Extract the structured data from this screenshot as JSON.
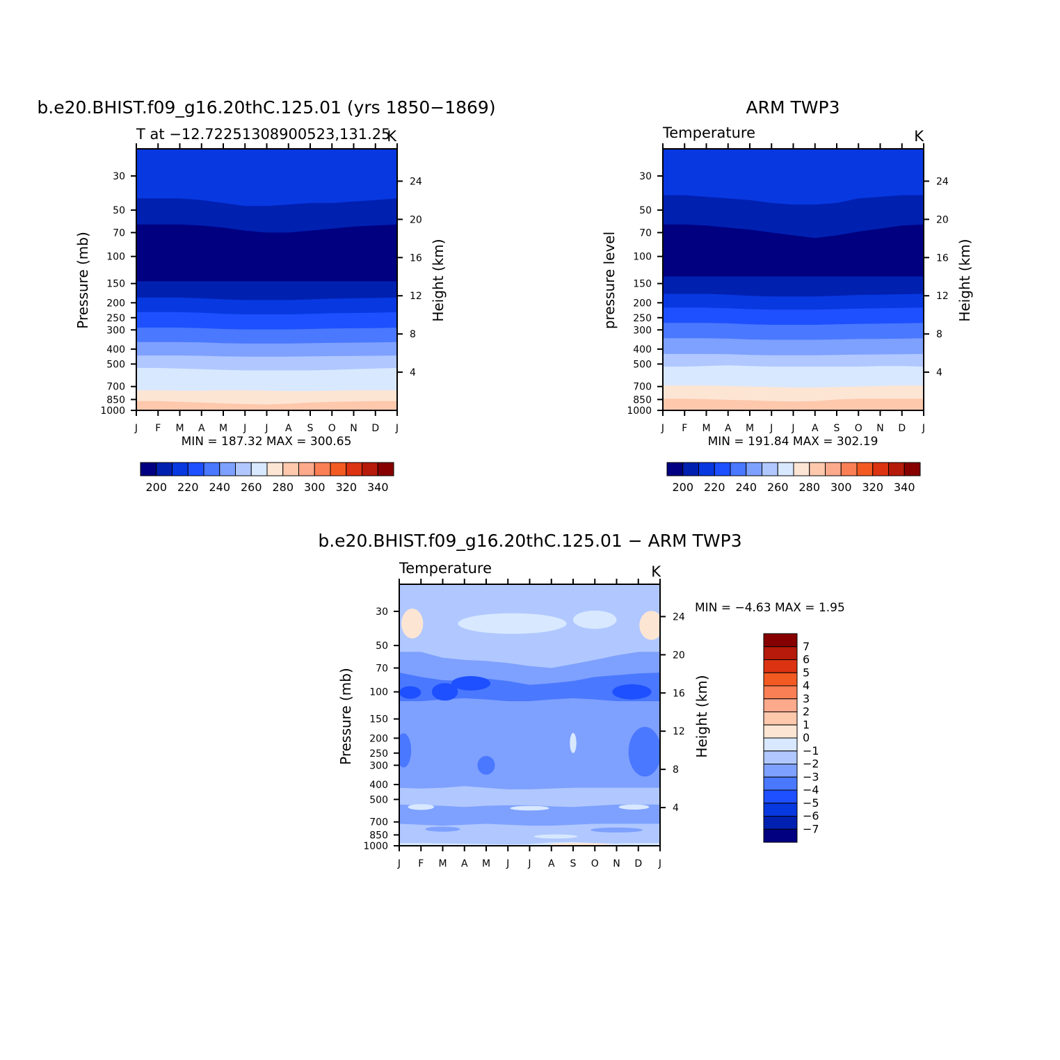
{
  "page": {
    "colormap": [
      "#000080",
      "#0020b0",
      "#0838e0",
      "#1e50ff",
      "#4a78ff",
      "#7ea0ff",
      "#b0c8ff",
      "#d8e8ff",
      "#fde5d4",
      "#fdc8ac",
      "#fca98c",
      "#fa7f55",
      "#f35a22",
      "#dc3312",
      "#b51a0a",
      "#870000"
    ]
  },
  "chart_data": [
    {
      "id": "model",
      "type": "heatmap",
      "title": "b.e20.BHIST.f09_g16.20thC.125.01 (yrs 1850−1869)",
      "subtitle": "T at −12.72251308900523,131.25",
      "units": "K",
      "xlabel": "",
      "ylabel": "Pressure (mb)",
      "ylabel_right": "Height (km)",
      "x_ticks": [
        "J",
        "F",
        "M",
        "A",
        "M",
        "J",
        "J",
        "A",
        "S",
        "O",
        "N",
        "D",
        "J"
      ],
      "y_ticks": [
        30,
        50,
        70,
        100,
        150,
        200,
        250,
        300,
        400,
        500,
        700,
        850,
        1000
      ],
      "y_right_ticks": [
        24,
        20,
        16,
        12,
        8,
        4
      ],
      "ylim": [
        20,
        1000
      ],
      "y_scale": "log",
      "stats": "MIN = 187.32 MAX = 300.65",
      "colorbar": {
        "levels": [
          200,
          220,
          240,
          260,
          280,
          300,
          320,
          340
        ]
      },
      "bands": [
        {
          "p": [
            30,
            30,
            30,
            30,
            30,
            30,
            30,
            30,
            30,
            30,
            30,
            30,
            30
          ],
          "c": 2
        },
        {
          "p": [
            42,
            42,
            42,
            43,
            45,
            47,
            47,
            46,
            45,
            45,
            44,
            43,
            42
          ],
          "c": 1
        },
        {
          "p": [
            62,
            62,
            62,
            63,
            65,
            68,
            70,
            70,
            68,
            66,
            64,
            63,
            62
          ],
          "c": 0
        },
        {
          "p": [
            145,
            145,
            145,
            145,
            145,
            145,
            145,
            145,
            145,
            145,
            145,
            145,
            145
          ],
          "c": 1
        },
        {
          "p": [
            185,
            185,
            185,
            187,
            190,
            192,
            192,
            192,
            190,
            188,
            187,
            186,
            185
          ],
          "c": 2
        },
        {
          "p": [
            230,
            230,
            230,
            232,
            236,
            238,
            238,
            238,
            236,
            234,
            233,
            232,
            230
          ],
          "c": 3
        },
        {
          "p": [
            290,
            290,
            290,
            292,
            296,
            298,
            298,
            298,
            296,
            294,
            293,
            292,
            290
          ],
          "c": 4
        },
        {
          "p": [
            360,
            360,
            360,
            362,
            366,
            368,
            368,
            368,
            366,
            364,
            363,
            362,
            360
          ],
          "c": 5
        },
        {
          "p": [
            440,
            440,
            440,
            442,
            446,
            448,
            448,
            448,
            446,
            444,
            443,
            442,
            440
          ],
          "c": 6
        },
        {
          "p": [
            530,
            530,
            535,
            540,
            545,
            550,
            550,
            550,
            550,
            545,
            540,
            535,
            530
          ],
          "c": 7
        },
        {
          "p": [
            740,
            740,
            745,
            745,
            740,
            740,
            745,
            750,
            750,
            745,
            740,
            740,
            740
          ],
          "c": 8
        },
        {
          "p": [
            870,
            870,
            880,
            890,
            900,
            910,
            915,
            905,
            890,
            880,
            875,
            870,
            870
          ],
          "c": 9
        }
      ]
    },
    {
      "id": "obs",
      "type": "heatmap",
      "title": "ARM TWP3",
      "subtitle": "Temperature",
      "units": "K",
      "xlabel": "",
      "ylabel": "pressure level",
      "ylabel_right": "Height (km)",
      "x_ticks": [
        "J",
        "F",
        "M",
        "A",
        "M",
        "J",
        "J",
        "A",
        "S",
        "O",
        "N",
        "D",
        "J"
      ],
      "y_ticks": [
        30,
        50,
        70,
        100,
        150,
        200,
        250,
        300,
        400,
        500,
        700,
        850,
        1000
      ],
      "y_right_ticks": [
        24,
        20,
        16,
        12,
        8,
        4
      ],
      "ylim": [
        20,
        1000
      ],
      "y_scale": "log",
      "stats": "MIN = 191.84 MAX = 302.19",
      "colorbar": {
        "levels": [
          200,
          220,
          240,
          260,
          280,
          300,
          320,
          340
        ]
      },
      "bands": [
        {
          "p": [
            30,
            30,
            30,
            30,
            30,
            30,
            30,
            30,
            30,
            30,
            30,
            30,
            30
          ],
          "c": 2
        },
        {
          "p": [
            40,
            40,
            41,
            42,
            43,
            45,
            46,
            46,
            45,
            42,
            41,
            40,
            40
          ],
          "c": 1
        },
        {
          "p": [
            62,
            62,
            63,
            65,
            67,
            70,
            73,
            76,
            73,
            69,
            66,
            63,
            62
          ],
          "c": 0
        },
        {
          "p": [
            135,
            135,
            135,
            135,
            135,
            135,
            135,
            135,
            135,
            135,
            135,
            135,
            135
          ],
          "c": 1
        },
        {
          "p": [
            175,
            175,
            175,
            177,
            180,
            182,
            182,
            182,
            180,
            178,
            177,
            176,
            175
          ],
          "c": 2
        },
        {
          "p": [
            215,
            215,
            215,
            217,
            220,
            222,
            222,
            222,
            220,
            218,
            217,
            216,
            215
          ],
          "c": 3
        },
        {
          "p": [
            270,
            270,
            270,
            272,
            276,
            278,
            278,
            278,
            276,
            274,
            273,
            272,
            270
          ],
          "c": 4
        },
        {
          "p": [
            340,
            340,
            340,
            342,
            346,
            348,
            348,
            348,
            346,
            344,
            343,
            342,
            340
          ],
          "c": 5
        },
        {
          "p": [
            430,
            430,
            430,
            432,
            436,
            438,
            438,
            438,
            436,
            434,
            433,
            432,
            430
          ],
          "c": 6
        },
        {
          "p": [
            520,
            520,
            515,
            510,
            515,
            520,
            520,
            520,
            520,
            520,
            515,
            515,
            520
          ],
          "c": 7
        },
        {
          "p": [
            690,
            690,
            690,
            695,
            700,
            705,
            710,
            710,
            705,
            700,
            695,
            690,
            690
          ],
          "c": 8
        },
        {
          "p": [
            840,
            840,
            845,
            855,
            860,
            870,
            875,
            870,
            850,
            840,
            840,
            840,
            840
          ],
          "c": 9
        }
      ]
    },
    {
      "id": "diff",
      "type": "heatmap",
      "title": "b.e20.BHIST.f09_g16.20thC.125.01 − ARM TWP3",
      "subtitle": "Temperature",
      "units": "K",
      "xlabel": "",
      "ylabel": "Pressure (mb)",
      "ylabel_right": "Height (km)",
      "x_ticks": [
        "J",
        "F",
        "M",
        "A",
        "M",
        "J",
        "J",
        "A",
        "S",
        "O",
        "N",
        "D",
        "J"
      ],
      "y_ticks": [
        30,
        50,
        70,
        100,
        150,
        200,
        250,
        300,
        400,
        500,
        700,
        850,
        1000
      ],
      "y_right_ticks": [
        24,
        20,
        16,
        12,
        8,
        4
      ],
      "ylim": [
        20,
        1000
      ],
      "y_scale": "log",
      "stats": "MIN = −4.63 MAX = 1.95",
      "colorbar": {
        "levels": [
          "7",
          "6",
          "5",
          "4",
          "3",
          "2",
          "1",
          "0",
          "−1",
          "−2",
          "−3",
          "−4",
          "−5",
          "−6",
          "−7"
        ]
      },
      "bands": [
        {
          "p": [
            30,
            30,
            30,
            30,
            30,
            30,
            30,
            30,
            30,
            30,
            30,
            30,
            30
          ],
          "c": 6
        },
        {
          "p": [
            55,
            55,
            60,
            62,
            63,
            65,
            68,
            70,
            66,
            62,
            58,
            55,
            55
          ],
          "c": 5
        },
        {
          "p": [
            75,
            80,
            84,
            85,
            82,
            85,
            90,
            88,
            85,
            80,
            78,
            76,
            75
          ],
          "c": 4
        },
        {
          "p": [
            115,
            115,
            112,
            110,
            112,
            115,
            115,
            112,
            110,
            112,
            115,
            115,
            115
          ],
          "c": 5
        },
        {
          "p": [
            420,
            425,
            420,
            410,
            420,
            430,
            430,
            425,
            420,
            420,
            420,
            420,
            420
          ],
          "c": 6
        },
        {
          "p": [
            540,
            545,
            550,
            560,
            550,
            545,
            545,
            555,
            560,
            550,
            540,
            540,
            540
          ],
          "c": 5
        },
        {
          "p": [
            720,
            730,
            740,
            730,
            720,
            730,
            740,
            740,
            730,
            720,
            720,
            720,
            720
          ],
          "c": 6
        },
        {
          "p": [
            960,
            960,
            965,
            970,
            975,
            980,
            975,
            950,
            945,
            960,
            965,
            960,
            960
          ],
          "c": 7
        }
      ],
      "features": [
        {
          "cx": 2.1,
          "cy": 100,
          "rx": 0.6,
          "ry": 14,
          "c": 3
        },
        {
          "cx": 10.7,
          "cy": 100,
          "rx": 0.9,
          "ry": 12,
          "c": 3
        },
        {
          "cx": 0.5,
          "cy": 101,
          "rx": 0.5,
          "ry": 10,
          "c": 3
        },
        {
          "cx": 3.3,
          "cy": 88,
          "rx": 0.9,
          "ry": 10,
          "c": 3
        },
        {
          "cx": 11.3,
          "cy": 245,
          "rx": 0.75,
          "ry": 110,
          "c": 4
        },
        {
          "cx": 0.2,
          "cy": 240,
          "rx": 0.35,
          "ry": 70,
          "c": 4
        },
        {
          "cx": 4.0,
          "cy": 300,
          "rx": 0.4,
          "ry": 45,
          "c": 4
        },
        {
          "cx": 8.0,
          "cy": 215,
          "rx": 0.15,
          "ry": 35,
          "c": 7
        },
        {
          "cx": 0.6,
          "cy": 36,
          "rx": 0.5,
          "ry": 9,
          "c": 8
        },
        {
          "cx": 11.6,
          "cy": 37,
          "rx": 0.55,
          "ry": 9,
          "c": 8
        },
        {
          "cx": 5.2,
          "cy": 36,
          "rx": 2.5,
          "ry": 6,
          "c": 7
        },
        {
          "cx": 9.0,
          "cy": 34,
          "rx": 1.0,
          "ry": 5,
          "c": 7
        },
        {
          "cx": 1.0,
          "cy": 560,
          "rx": 0.6,
          "ry": 25,
          "c": 7
        },
        {
          "cx": 6.0,
          "cy": 570,
          "rx": 0.9,
          "ry": 20,
          "c": 7
        },
        {
          "cx": 10.8,
          "cy": 560,
          "rx": 0.7,
          "ry": 22,
          "c": 7
        },
        {
          "cx": 7.2,
          "cy": 870,
          "rx": 1.0,
          "ry": 20,
          "c": 7
        },
        {
          "cx": 2.0,
          "cy": 780,
          "rx": 0.8,
          "ry": 30,
          "c": 5
        },
        {
          "cx": 10.0,
          "cy": 790,
          "rx": 1.2,
          "ry": 30,
          "c": 5
        },
        {
          "cx": 8.3,
          "cy": 990,
          "rx": 1.4,
          "ry": 10,
          "c": 8
        }
      ]
    }
  ]
}
